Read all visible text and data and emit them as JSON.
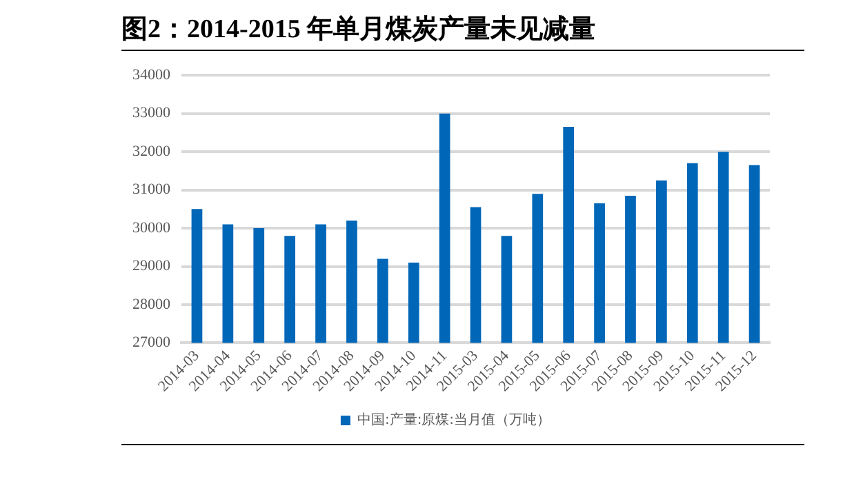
{
  "chart_data": {
    "type": "bar",
    "title": "图2：2014-2015 年单月煤炭产量未见减量",
    "categories": [
      "2014-03",
      "2014-04",
      "2014-05",
      "2014-06",
      "2014-07",
      "2014-08",
      "2014-09",
      "2014-10",
      "2014-11",
      "2015-03",
      "2015-04",
      "2015-05",
      "2015-06",
      "2015-07",
      "2015-08",
      "2015-09",
      "2015-10",
      "2015-11",
      "2015-12"
    ],
    "series": [
      {
        "name": "中国:产量:原煤:当月值（万吨）",
        "color": "#0066b8",
        "values": [
          30500,
          30100,
          30000,
          29800,
          30100,
          30200,
          29200,
          29100,
          33000,
          30550,
          29800,
          30900,
          32650,
          30650,
          30850,
          31250,
          31700,
          32000,
          31650
        ]
      }
    ],
    "ylim": [
      27000,
      34000
    ],
    "yticks": [
      27000,
      28000,
      29000,
      30000,
      31000,
      32000,
      33000,
      34000
    ],
    "grid": "y",
    "legend": "bottom"
  }
}
